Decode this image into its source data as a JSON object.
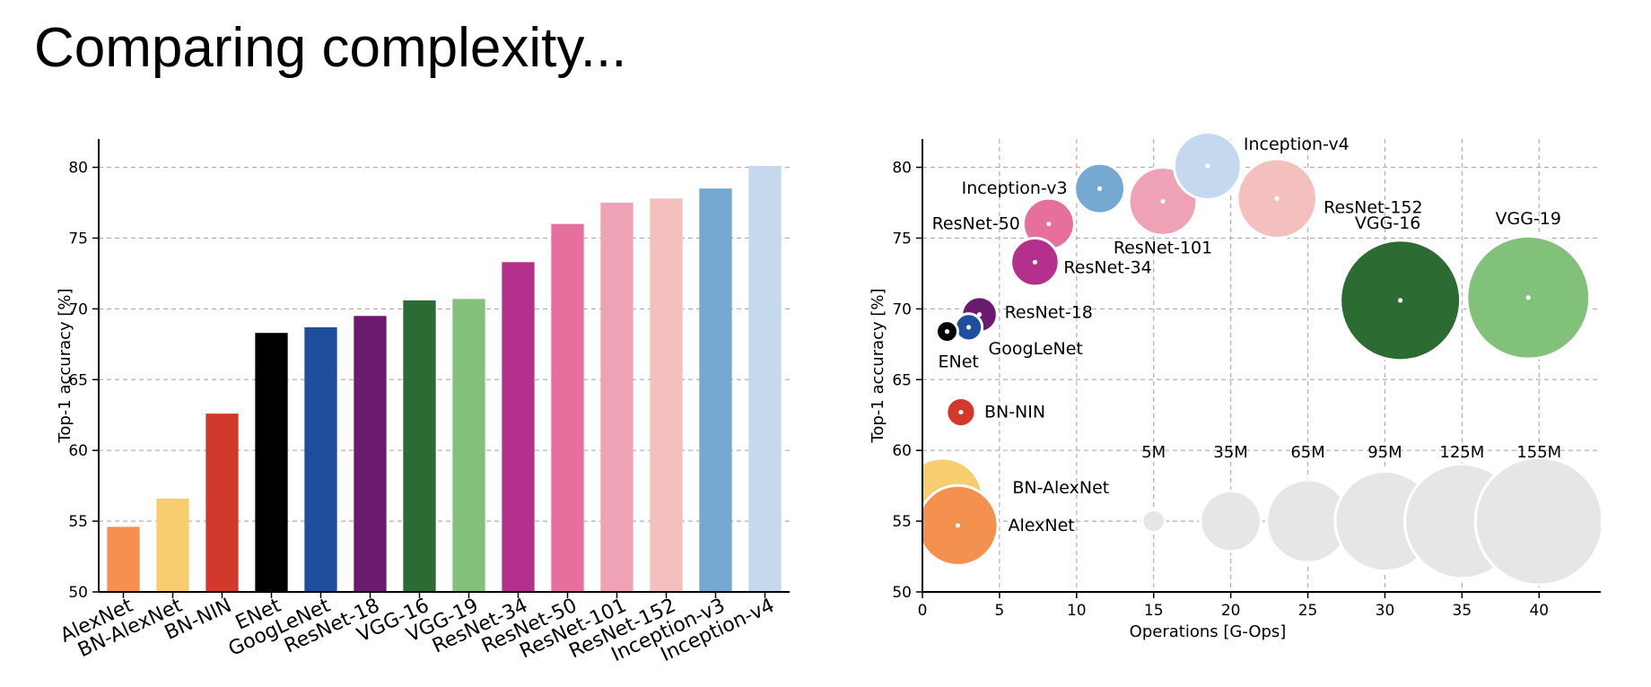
{
  "slide": {
    "title": "Comparing complexity..."
  },
  "chart_data": [
    {
      "type": "bar",
      "ylabel": "Top-1 accuracy [%]",
      "xlabel": "",
      "ylim": [
        50,
        82
      ],
      "yticks": [
        50,
        55,
        60,
        65,
        70,
        75,
        80
      ],
      "grid": true,
      "categories": [
        "AlexNet",
        "BN-AlexNet",
        "BN-NIN",
        "ENet",
        "GoogLeNet",
        "ResNet-18",
        "VGG-16",
        "VGG-19",
        "ResNet-34",
        "ResNet-50",
        "ResNet-101",
        "ResNet-152",
        "Inception-v3",
        "Inception-v4"
      ],
      "values": [
        54.6,
        56.6,
        62.6,
        68.3,
        68.7,
        69.5,
        70.6,
        70.7,
        73.3,
        76.0,
        77.5,
        77.8,
        78.5,
        80.1
      ],
      "colors": [
        "#f4914f",
        "#f8cd70",
        "#d2392b",
        "#000000",
        "#1f4e9c",
        "#6a1b6d",
        "#2c6b32",
        "#81c17a",
        "#b3308c",
        "#e66f9e",
        "#efa2b6",
        "#f4c0bd",
        "#76a9d1",
        "#c4d8ee"
      ]
    },
    {
      "type": "scatter",
      "xlabel": "Operations [G-Ops]",
      "ylabel": "Top-1 accuracy [%]",
      "xlim": [
        0,
        44
      ],
      "ylim": [
        50,
        82
      ],
      "xticks": [
        0,
        5,
        10,
        15,
        20,
        25,
        30,
        35,
        40
      ],
      "yticks": [
        50,
        55,
        60,
        65,
        70,
        75,
        80
      ],
      "grid": true,
      "size_encoding": "parameters",
      "points": [
        {
          "label": "AlexNet",
          "x": 2.3,
          "y": 54.7,
          "params_m": 61,
          "color": "#f4914f"
        },
        {
          "label": "BN-AlexNet",
          "x": 1.3,
          "y": 56.6,
          "params_m": 62,
          "color": "#f8cd70"
        },
        {
          "label": "BN-NIN",
          "x": 2.5,
          "y": 62.7,
          "params_m": 8,
          "color": "#d2392b"
        },
        {
          "label": "ENet",
          "x": 1.6,
          "y": 68.4,
          "params_m": 2,
          "color": "#000000"
        },
        {
          "label": "GoogLeNet",
          "x": 3.0,
          "y": 68.7,
          "params_m": 7,
          "color": "#1f4e9c"
        },
        {
          "label": "ResNet-18",
          "x": 3.7,
          "y": 69.6,
          "params_m": 12,
          "color": "#6a1b6d"
        },
        {
          "label": "VGG-16",
          "x": 31.0,
          "y": 70.6,
          "params_m": 138,
          "color": "#2c6b32"
        },
        {
          "label": "VGG-19",
          "x": 39.3,
          "y": 70.8,
          "params_m": 144,
          "color": "#81c17a"
        },
        {
          "label": "ResNet-34",
          "x": 7.3,
          "y": 73.3,
          "params_m": 22,
          "color": "#b3308c"
        },
        {
          "label": "ResNet-50",
          "x": 8.2,
          "y": 76.0,
          "params_m": 25,
          "color": "#e66f9e"
        },
        {
          "label": "ResNet-101",
          "x": 15.6,
          "y": 77.6,
          "params_m": 44,
          "color": "#efa2b6"
        },
        {
          "label": "ResNet-152",
          "x": 23.0,
          "y": 77.8,
          "params_m": 60,
          "color": "#f4c0bd"
        },
        {
          "label": "Inception-v3",
          "x": 11.5,
          "y": 78.5,
          "params_m": 24,
          "color": "#76a9d1"
        },
        {
          "label": "Inception-v4",
          "x": 18.5,
          "y": 80.1,
          "params_m": 43,
          "color": "#c4d8ee"
        }
      ],
      "size_legend": [
        {
          "label": "5M",
          "x": 15,
          "y": 55,
          "params_m": 5
        },
        {
          "label": "35M",
          "x": 20,
          "y": 55,
          "params_m": 35
        },
        {
          "label": "65M",
          "x": 25,
          "y": 55,
          "params_m": 65
        },
        {
          "label": "95M",
          "x": 30,
          "y": 55,
          "params_m": 95
        },
        {
          "label": "125M",
          "x": 35,
          "y": 55,
          "params_m": 125
        },
        {
          "label": "155M",
          "x": 40,
          "y": 55,
          "params_m": 155
        }
      ],
      "legend_color": "#e6e6e6"
    }
  ]
}
